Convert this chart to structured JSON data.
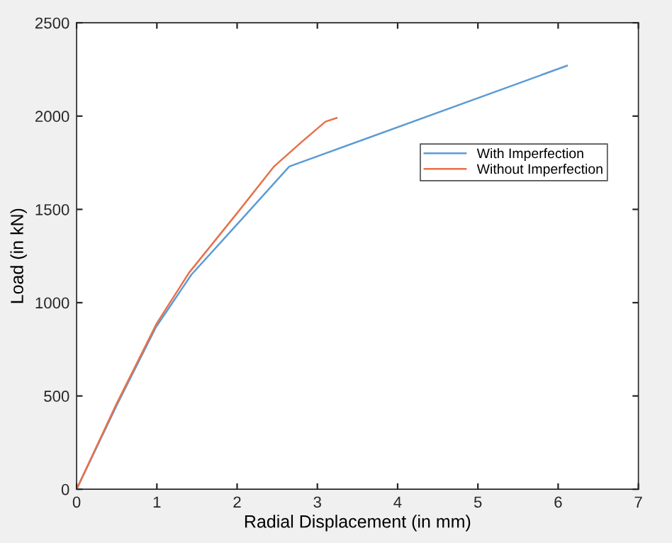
{
  "chart_data": {
    "type": "line",
    "xlabel": "Radial Displacement (in mm)",
    "ylabel": "Load (in kN)",
    "xlim": [
      0,
      7
    ],
    "ylim": [
      0,
      2500
    ],
    "xticks": [
      0,
      1,
      2,
      3,
      4,
      5,
      6,
      7
    ],
    "yticks": [
      0,
      500,
      1000,
      1500,
      2000,
      2500
    ],
    "grid": false,
    "legend": "top right",
    "marker": "none",
    "line_style": "solid",
    "series": [
      {
        "name": "With Imperfection",
        "color": "#5b9bd5",
        "x": [
          0,
          0.5,
          0.99,
          1.43,
          2.0,
          2.65,
          6.11
        ],
        "values": [
          0,
          450,
          870,
          1150,
          1420,
          1730,
          2270
        ]
      },
      {
        "name": "Without Imperfection",
        "color": "#e8704a",
        "x": [
          0,
          0.5,
          1.0,
          1.4,
          2.0,
          2.46,
          2.8,
          3.1,
          3.24
        ],
        "values": [
          0,
          460,
          890,
          1160,
          1480,
          1730,
          1860,
          1970,
          1990
        ]
      }
    ]
  }
}
